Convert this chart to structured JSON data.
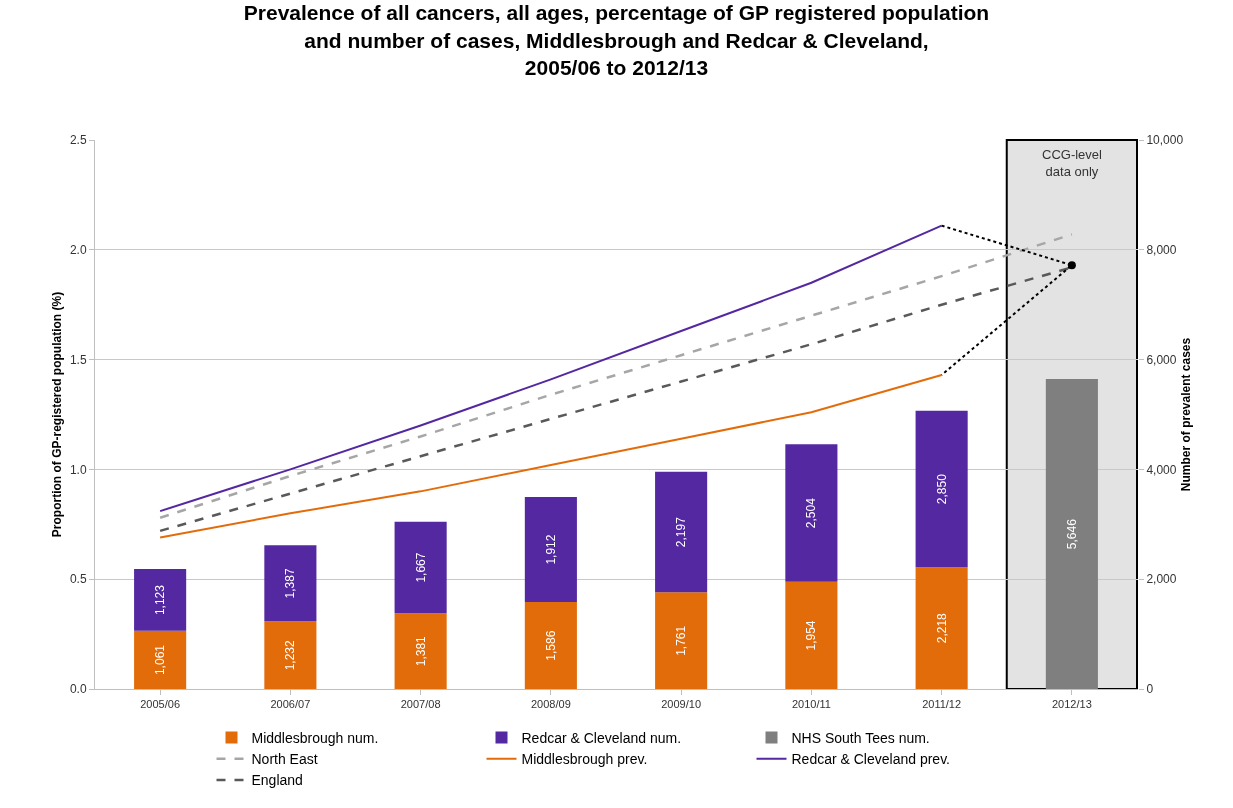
{
  "chart_data": {
    "type": "bar",
    "title": "Prevalence of all cancers, all ages, percentage of GP registered population\nand number of cases, Middlesbrough and Redcar & Cleveland,\n2005/06 to 2012/13",
    "ylabel": "Proportion of GP-registered population (%)",
    "y2label": "Number of prevalent cases",
    "categories": [
      "2005/06",
      "2006/07",
      "2007/08",
      "2008/09",
      "2009/10",
      "2010/11",
      "2011/12",
      "2012/13"
    ],
    "stacked": true,
    "series": [
      {
        "name": "Middlesbrough num.",
        "axis": "y2",
        "color": "#e36c0a",
        "values": [
          1061,
          1232,
          1381,
          1586,
          1761,
          1954,
          2218,
          null
        ],
        "value_labels": [
          "1,061",
          "1,232",
          "1,381",
          "1,586",
          "1,761",
          "1,954",
          "2,218",
          null
        ]
      },
      {
        "name": "Redcar & Cleveland num.",
        "axis": "y2",
        "color": "#5428a0",
        "values": [
          1123,
          1387,
          1667,
          1912,
          2197,
          2504,
          2850,
          null
        ],
        "value_labels": [
          "1,123",
          "1,387",
          "1,667",
          "1,912",
          "2,197",
          "2,504",
          "2,850",
          null
        ]
      },
      {
        "name": "NHS South Tees num.",
        "axis": "y2",
        "color": "#7f7f7f",
        "values": [
          null,
          null,
          null,
          null,
          null,
          null,
          null,
          5646
        ],
        "value_labels": [
          null,
          null,
          null,
          null,
          null,
          null,
          null,
          "5,646"
        ]
      },
      {
        "name": "North East",
        "type": "line",
        "axis": "y",
        "color": "#a6a6a6",
        "line_style": "dashed",
        "values": [
          0.78,
          0.97,
          1.15,
          1.34,
          1.52,
          1.7,
          1.88,
          2.07
        ]
      },
      {
        "name": "Middlesbrough prev.",
        "type": "line",
        "axis": "y",
        "color": "#e36c0a",
        "line_style": "solid",
        "values": [
          0.69,
          0.8,
          0.9,
          1.02,
          1.14,
          1.26,
          1.43,
          null
        ]
      },
      {
        "name": "Redcar & Cleveland prev.",
        "type": "line",
        "axis": "y",
        "color": "#5428a0",
        "line_style": "solid",
        "values": [
          0.81,
          1.0,
          1.2,
          1.41,
          1.63,
          1.85,
          2.11,
          null
        ]
      },
      {
        "name": "England",
        "type": "line",
        "axis": "y",
        "color": "#595959",
        "line_style": "dashed",
        "values": [
          0.72,
          0.89,
          1.06,
          1.23,
          1.4,
          1.57,
          1.75,
          1.92
        ]
      },
      {
        "type": "line",
        "axis": "y",
        "color": "#000000",
        "line_style": "dotted",
        "x": [
          "2011/12",
          "2012/13",
          "2011/12"
        ],
        "values": [
          2.11,
          1.93,
          1.43
        ]
      },
      {
        "type": "scatter",
        "axis": "y",
        "color": "#000000",
        "marker": "circle",
        "x": [
          "2012/13"
        ],
        "values": [
          1.93
        ]
      }
    ],
    "bands": [
      {
        "axis": "x",
        "from": "2012/13",
        "to": "2012/13",
        "label": "CCG-level data only",
        "color": "#e3e3e3"
      }
    ],
    "ylim": [
      0,
      2.5
    ],
    "yticks": [
      {
        "value": 0,
        "label": "0.0"
      },
      0.5,
      {
        "value": 1,
        "label": "1.0"
      },
      1.5,
      {
        "value": 2,
        "label": "2.0"
      },
      2.5
    ],
    "y2lim": [
      0,
      10000
    ],
    "y2ticks": [
      0,
      {
        "value": 2000,
        "label": "2,000"
      },
      {
        "value": 4000,
        "label": "4,000"
      },
      {
        "value": 6000,
        "label": "6,000"
      },
      {
        "value": 8000,
        "label": "8,000"
      },
      {
        "value": 10000,
        "label": "10,000"
      }
    ],
    "grid": "y",
    "legend": "bottom"
  }
}
